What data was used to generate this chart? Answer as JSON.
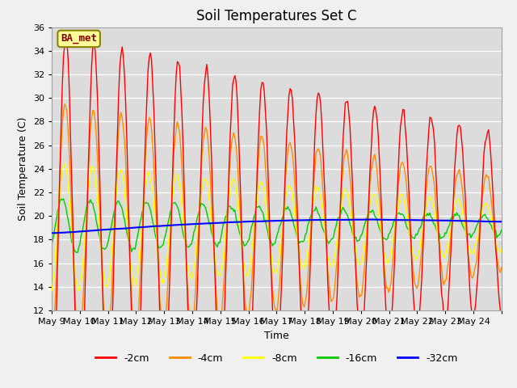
{
  "title": "Soil Temperatures Set C",
  "xlabel": "Time",
  "ylabel": "Soil Temperature (C)",
  "ylim": [
    12,
    36
  ],
  "yticks": [
    12,
    14,
    16,
    18,
    20,
    22,
    24,
    26,
    28,
    30,
    32,
    34,
    36
  ],
  "xtick_labels": [
    "May 9",
    "May 10",
    "May 11",
    "May 12",
    "May 13",
    "May 14",
    "May 15",
    "May 16",
    "May 17",
    "May 18",
    "May 19",
    "May 20",
    "May 21",
    "May 22",
    "May 23",
    "May 24"
  ],
  "series_colors": [
    "#FF0000",
    "#FF8C00",
    "#FFFF00",
    "#00CC00",
    "#0000FF"
  ],
  "series_labels": [
    "-2cm",
    "-4cm",
    "-8cm",
    "-16cm",
    "-32cm"
  ],
  "annotation_text": "BA_met",
  "annotation_color": "#8B0000",
  "annotation_bg": "#FFFF99",
  "plot_bg_color": "#DCDCDC",
  "fig_bg_color": "#F0F0F0",
  "title_fontsize": 12,
  "axis_fontsize": 9,
  "tick_fontsize": 8,
  "legend_fontsize": 9
}
